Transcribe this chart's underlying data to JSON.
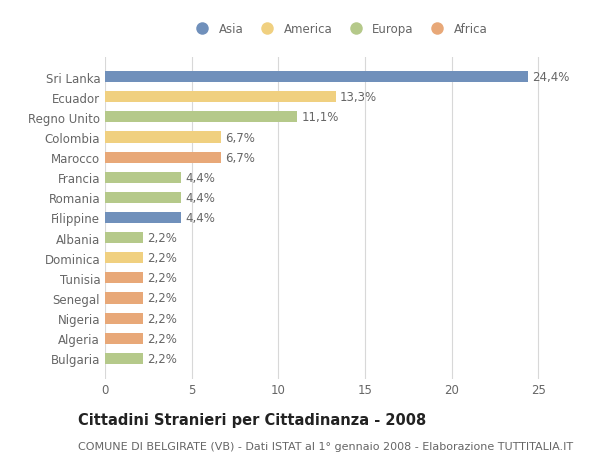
{
  "countries": [
    "Sri Lanka",
    "Ecuador",
    "Regno Unito",
    "Colombia",
    "Marocco",
    "Francia",
    "Romania",
    "Filippine",
    "Albania",
    "Dominica",
    "Tunisia",
    "Senegal",
    "Nigeria",
    "Algeria",
    "Bulgaria"
  ],
  "values": [
    24.4,
    13.3,
    11.1,
    6.7,
    6.7,
    4.4,
    4.4,
    4.4,
    2.2,
    2.2,
    2.2,
    2.2,
    2.2,
    2.2,
    2.2
  ],
  "labels": [
    "24,4%",
    "13,3%",
    "11,1%",
    "6,7%",
    "6,7%",
    "4,4%",
    "4,4%",
    "4,4%",
    "2,2%",
    "2,2%",
    "2,2%",
    "2,2%",
    "2,2%",
    "2,2%",
    "2,2%"
  ],
  "continents": [
    "Asia",
    "America",
    "Europa",
    "America",
    "Africa",
    "Europa",
    "Europa",
    "Asia",
    "Europa",
    "America",
    "Africa",
    "Africa",
    "Africa",
    "Africa",
    "Europa"
  ],
  "continent_colors": {
    "Asia": "#7090bb",
    "America": "#f0d080",
    "Europa": "#b5c98a",
    "Africa": "#e8a878"
  },
  "legend_order": [
    "Asia",
    "America",
    "Europa",
    "Africa"
  ],
  "title": "Cittadini Stranieri per Cittadinanza - 2008",
  "subtitle": "COMUNE DI BELGIRATE (VB) - Dati ISTAT al 1° gennaio 2008 - Elaborazione TUTTITALIA.IT",
  "xlim": [
    0,
    27
  ],
  "xticks": [
    0,
    5,
    10,
    15,
    20,
    25
  ],
  "bg_color": "#ffffff",
  "grid_color": "#d8d8d8",
  "bar_height": 0.55,
  "label_fontsize": 8.5,
  "tick_fontsize": 8.5,
  "title_fontsize": 10.5,
  "subtitle_fontsize": 8.0,
  "label_color": "#666666",
  "ytick_color": "#666666"
}
